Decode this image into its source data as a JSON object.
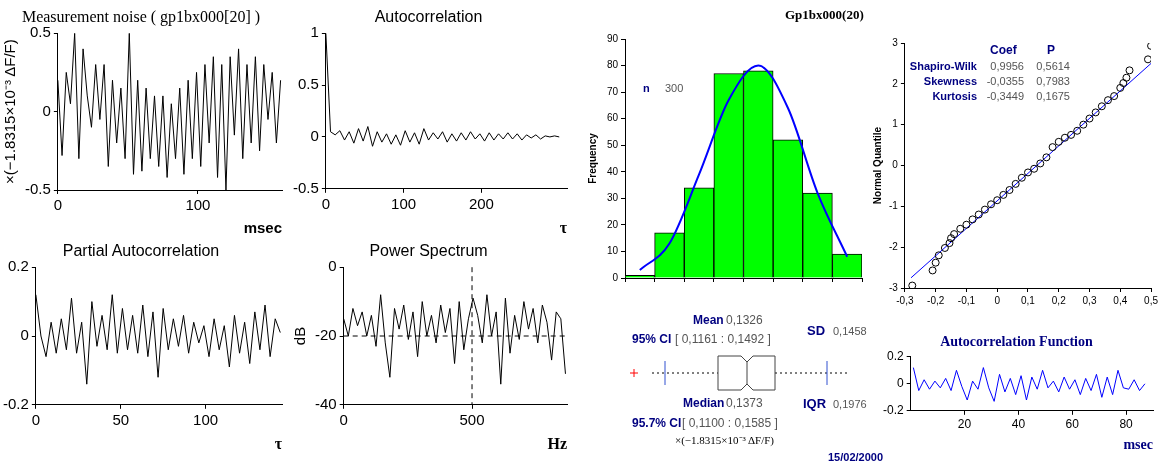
{
  "chart_data": [
    {
      "type": "line",
      "title": "Measurement noise ( gp1bx000[20] )",
      "xlabel": "msec",
      "ylabel": "×(−1.8315×10⁻³ ΔF/F)",
      "marker": "none",
      "xlim": [
        0,
        160
      ],
      "xticks": [
        0,
        100
      ],
      "ylim": [
        -0.5,
        0.5
      ],
      "yticks": [
        -0.5,
        0,
        0.5
      ],
      "series": [
        {
          "color": "#000000",
          "x": [
            0,
            3,
            6,
            9,
            12,
            15,
            18,
            21,
            24,
            27,
            30,
            33,
            36,
            39,
            42,
            45,
            48,
            51,
            54,
            57,
            60,
            63,
            66,
            69,
            72,
            75,
            78,
            81,
            84,
            87,
            90,
            93,
            96,
            99,
            102,
            105,
            108,
            111,
            114,
            117,
            120,
            123,
            126,
            129,
            132,
            135,
            138,
            141,
            144,
            147,
            150,
            153,
            156,
            159
          ],
          "values": [
            0.2,
            -0.28,
            0.25,
            0.05,
            0.5,
            -0.3,
            0.4,
            0.1,
            -0.1,
            0.3,
            -0.05,
            0.3,
            -0.35,
            0.2,
            -0.2,
            0.15,
            -0.3,
            0.5,
            -0.4,
            0.2,
            -0.38,
            0.15,
            -0.3,
            0.1,
            -0.35,
            0.1,
            -0.42,
            0.05,
            -0.3,
            0.15,
            -0.4,
            0.2,
            -0.3,
            0.25,
            -0.35,
            0.3,
            -0.2,
            0.35,
            -0.42,
            0.3,
            -0.5,
            0.35,
            -0.15,
            0.4,
            -0.3,
            0.3,
            -0.2,
            0.35,
            -0.25,
            0.3,
            -0.05,
            0.25,
            -0.2,
            0.2
          ]
        }
      ]
    },
    {
      "type": "line",
      "title": "Autocorrelation",
      "xlabel": "τ",
      "marker": "none",
      "xlim": [
        0,
        310
      ],
      "xticks": [
        0,
        100,
        200
      ],
      "ylim": [
        -0.5,
        1
      ],
      "yticks": [
        -0.5,
        0,
        0.5,
        1
      ],
      "series": [
        {
          "color": "#000000",
          "x": [
            0,
            6,
            12,
            18,
            24,
            30,
            36,
            42,
            48,
            54,
            60,
            66,
            72,
            78,
            84,
            90,
            96,
            102,
            108,
            114,
            120,
            126,
            132,
            138,
            144,
            150,
            156,
            162,
            168,
            174,
            180,
            186,
            192,
            198,
            204,
            210,
            216,
            222,
            228,
            234,
            240,
            246,
            252,
            258,
            264,
            270,
            276,
            282,
            288,
            294,
            300
          ],
          "values": [
            1,
            0.05,
            0.02,
            0.06,
            -0.03,
            0.05,
            -0.06,
            0.08,
            -0.04,
            0.1,
            -0.09,
            0.05,
            -0.05,
            0.03,
            -0.07,
            0.02,
            -0.08,
            0.06,
            -0.05,
            0.04,
            -0.07,
            0.08,
            -0.03,
            0.04,
            -0.02,
            0.05,
            -0.05,
            0.03,
            -0.04,
            0.04,
            -0.03,
            0.05,
            -0.02,
            0.03,
            -0.04,
            0.04,
            -0.03,
            0.03,
            -0.02,
            0.04,
            -0.02,
            0.03,
            -0.03,
            0.02,
            -0.01,
            0.02,
            -0.02,
            0.01,
            0,
            0.01,
            0
          ]
        }
      ]
    },
    {
      "type": "line",
      "title": "Partial Autocorrelation",
      "xlabel": "τ",
      "marker": "none",
      "xlim": [
        0,
        145
      ],
      "xticks": [
        0,
        50,
        100
      ],
      "ylim": [
        -0.2,
        0.2
      ],
      "yticks": [
        -0.2,
        0,
        0.2
      ],
      "series": [
        {
          "color": "#000000",
          "x": [
            0,
            3,
            6,
            9,
            12,
            15,
            18,
            21,
            24,
            27,
            30,
            33,
            36,
            39,
            42,
            45,
            48,
            51,
            54,
            57,
            60,
            63,
            66,
            69,
            72,
            75,
            78,
            81,
            84,
            87,
            90,
            93,
            96,
            99,
            102,
            105,
            108,
            111,
            114,
            117,
            120,
            123,
            126,
            129,
            132,
            135,
            138,
            141,
            144
          ],
          "values": [
            0.12,
            0,
            -0.06,
            0.04,
            -0.05,
            0.05,
            -0.04,
            0.11,
            -0.05,
            0.04,
            -0.14,
            0.1,
            -0.03,
            0.06,
            -0.04,
            0.12,
            -0.05,
            0.08,
            -0.04,
            0.06,
            -0.05,
            0.09,
            -0.06,
            0.07,
            -0.12,
            0.08,
            -0.04,
            0.05,
            -0.03,
            0.06,
            -0.05,
            0.04,
            -0.02,
            0.03,
            -0.06,
            0.05,
            -0.04,
            0.03,
            -0.09,
            0.06,
            -0.05,
            0.04,
            -0.08,
            0.07,
            -0.04,
            0.09,
            -0.06,
            0.05,
            0.01
          ]
        }
      ]
    },
    {
      "type": "line",
      "title": "Power Spectrum",
      "xlabel": "Hz",
      "ylabel": "dB",
      "marker": "none",
      "xlim": [
        0,
        870
      ],
      "xticks": [
        0,
        500
      ],
      "ylim": [
        -40,
        0
      ],
      "yticks": [
        -40,
        -20,
        0
      ],
      "ref_lines": [
        {
          "axis": "x",
          "value": 500,
          "line_style": "dashed"
        },
        {
          "axis": "y",
          "value": -20,
          "line_style": "dashed"
        }
      ],
      "series": [
        {
          "color": "#000000",
          "x": [
            0,
            18,
            36,
            54,
            72,
            90,
            108,
            126,
            144,
            162,
            180,
            198,
            216,
            234,
            252,
            270,
            288,
            306,
            324,
            342,
            360,
            378,
            396,
            414,
            432,
            450,
            468,
            486,
            504,
            522,
            540,
            558,
            576,
            594,
            612,
            630,
            648,
            666,
            684,
            702,
            720,
            738,
            756,
            774,
            792,
            810,
            828,
            846,
            864
          ],
          "values": [
            -15,
            -20,
            -12,
            -17,
            -13,
            -20,
            -14,
            -23,
            -8,
            -22,
            -32,
            -12,
            -18,
            -11,
            -21,
            -13,
            -26,
            -10,
            -20,
            -14,
            -22,
            -11,
            -19,
            -12,
            -28,
            -10,
            -24,
            -15,
            -9,
            -14,
            -22,
            -8,
            -20,
            -13,
            -34,
            -9,
            -25,
            -14,
            -21,
            -10,
            -18,
            -12,
            -22,
            -11,
            -16,
            -27,
            -13,
            -15,
            -31
          ]
        }
      ]
    },
    {
      "type": "bar",
      "title": "Gp1bx000(20)",
      "ylabel": "Frequency",
      "categories": [
        null,
        null,
        null,
        null,
        null,
        null,
        null,
        null
      ],
      "ylim": [
        0,
        90
      ],
      "yticks": [
        0,
        10,
        20,
        30,
        40,
        50,
        60,
        70,
        80,
        90
      ],
      "marker": "none",
      "annotations": [
        "n",
        "300"
      ],
      "series": [
        {
          "type": "bar",
          "color": "#00ff00",
          "values": [
            1,
            17,
            34,
            77,
            78,
            52,
            32,
            9
          ]
        },
        {
          "type": "line",
          "color": "#0000ff",
          "values": [
            3,
            13,
            39,
            67,
            80,
            64,
            32,
            8
          ]
        }
      ]
    },
    {
      "type": "other",
      "xlabel": "×(−1.8315×10⁻³ ΔF/F)",
      "annotations": [
        "Mean",
        "0,1326",
        "95% CI",
        "[  0,1161  :  0,1492  ]",
        "SD",
        "0,1458",
        "Median",
        "0,1373",
        "95.7% CI",
        "[  0,1100  :  0,1585  ]",
        "IQR",
        "0,1976",
        "15/02/2000"
      ]
    },
    {
      "type": "scatter",
      "ylabel": "Normal Quantile",
      "marker": "circle",
      "xlim": [
        -0.3,
        0.5
      ],
      "xticks": [
        {
          "value": -0.3,
          "label": "-0,3"
        },
        {
          "value": -0.2,
          "label": "-0,2"
        },
        {
          "value": -0.1,
          "label": "-0,1"
        },
        0,
        {
          "value": 0.1,
          "label": "0,1"
        },
        {
          "value": 0.2,
          "label": "0,2"
        },
        {
          "value": 0.3,
          "label": "0,3"
        },
        {
          "value": 0.4,
          "label": "0,4"
        },
        {
          "value": 0.5,
          "label": "0,5"
        }
      ],
      "ylim": [
        -3,
        3
      ],
      "yticks": [
        -3,
        -2,
        -1,
        0,
        1,
        2,
        3
      ],
      "annotations": [
        "Coef",
        "P",
        "Shapiro-Wilk",
        "0,9956",
        "0,5614",
        "Skewness",
        "-0,0355",
        "0,7983",
        "Kurtosis",
        "-0,3449",
        "0,1675"
      ],
      "series": [
        {
          "type": "scatter",
          "color": "#000000",
          "x": [
            -0.276,
            -0.21,
            -0.2,
            -0.19,
            -0.17,
            -0.155,
            -0.15,
            -0.14,
            -0.12,
            -0.1,
            -0.08,
            -0.06,
            -0.04,
            -0.02,
            0,
            0.02,
            0.04,
            0.06,
            0.08,
            0.1,
            0.12,
            0.14,
            0.16,
            0.18,
            0.2,
            0.22,
            0.24,
            0.26,
            0.28,
            0.3,
            0.32,
            0.34,
            0.36,
            0.38,
            0.4,
            0.41,
            0.42,
            0.43,
            0.49,
            0.5
          ],
          "values": [
            -2.94,
            -2.57,
            -2.38,
            -2.2,
            -2.02,
            -1.9,
            -1.78,
            -1.68,
            -1.55,
            -1.45,
            -1.32,
            -1.2,
            -1.08,
            -0.95,
            -0.85,
            -0.72,
            -0.6,
            -0.45,
            -0.3,
            -0.17,
            -0.08,
            0.05,
            0.2,
            0.45,
            0.58,
            0.68,
            0.75,
            0.85,
            1,
            1.15,
            1.3,
            1.45,
            1.6,
            1.7,
            1.9,
            2.02,
            2.15,
            2.33,
            2.6,
            2.93
          ]
        },
        {
          "type": "line",
          "color": "#0000ff",
          "marker": "none",
          "x": [
            -0.28,
            0.5
          ],
          "values": [
            -2.75,
            2.5
          ]
        }
      ]
    },
    {
      "type": "line",
      "title": "Autocorrelation Function",
      "xlabel": "msec",
      "marker": "none",
      "xlim": [
        0,
        90
      ],
      "xticks": [
        20,
        40,
        60,
        80
      ],
      "ylim": [
        -0.2,
        0.2
      ],
      "yticks": [
        -0.2,
        0,
        0.2
      ],
      "series": [
        {
          "color": "#0000ff",
          "x": [
            1,
            3,
            5,
            7,
            9,
            11,
            13,
            15,
            17,
            19,
            21,
            23,
            25,
            27,
            29,
            31,
            33,
            35,
            37,
            39,
            41,
            43,
            45,
            47,
            49,
            51,
            53,
            55,
            57,
            59,
            61,
            63,
            65,
            67,
            69,
            71,
            73,
            75,
            77,
            79,
            81,
            83,
            85,
            87
          ],
          "values": [
            0.12,
            -0.05,
            0.03,
            -0.04,
            0.02,
            -0.03,
            0.04,
            -0.05,
            0.1,
            -0.02,
            -0.12,
            0.02,
            -0.04,
            0.12,
            -0.03,
            -0.13,
            0.07,
            -0.06,
            0.04,
            -0.08,
            0.06,
            -0.12,
            0.05,
            -0.04,
            0.1,
            -0.03,
            0.02,
            -0.06,
            0.05,
            -0.04,
            0.03,
            -0.08,
            0.04,
            -0.05,
            0.07,
            -0.1,
            0.05,
            -0.08,
            0.1,
            -0.03,
            -0.04,
            0.03,
            -0.05,
            0
          ]
        }
      ]
    }
  ]
}
